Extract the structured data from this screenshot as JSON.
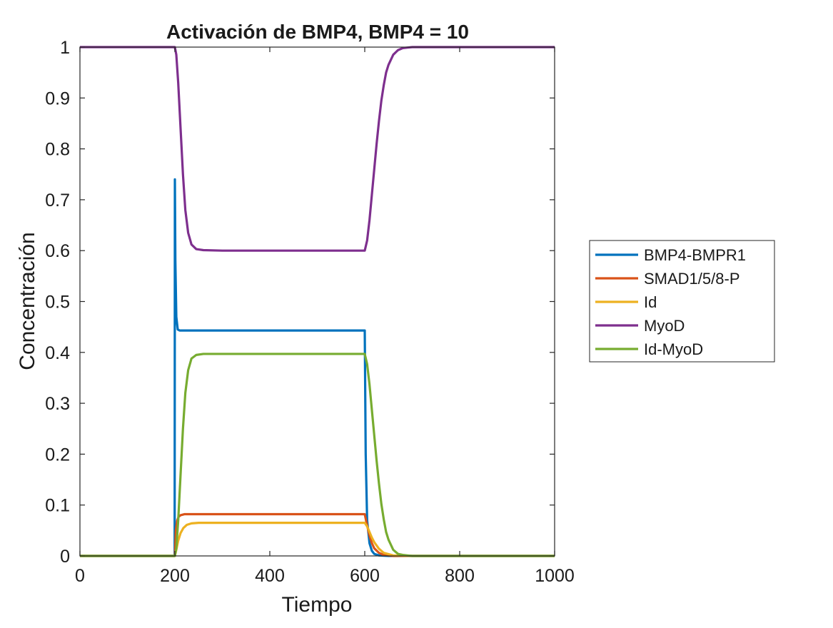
{
  "chart_data": {
    "type": "line",
    "title": "Activación de BMP4, BMP4 = 10",
    "xlabel": "Tiempo",
    "ylabel": "Concentración",
    "xlim": [
      0,
      1000
    ],
    "ylim": [
      0,
      1
    ],
    "xticks": [
      0,
      200,
      400,
      600,
      800,
      1000
    ],
    "xtick_labels": [
      "0",
      "200",
      "400",
      "600",
      "800",
      "1000"
    ],
    "yticks": [
      0,
      0.1,
      0.2,
      0.3,
      0.4,
      0.5,
      0.6,
      0.7,
      0.8,
      0.9,
      1
    ],
    "ytick_labels": [
      "0",
      "0.1",
      "0.2",
      "0.3",
      "0.4",
      "0.5",
      "0.6",
      "0.7",
      "0.8",
      "0.9",
      "1"
    ],
    "grid": false,
    "legend_placement": "outside-right",
    "series": [
      {
        "name": "BMP4-BMPR1",
        "color": "#0072BD",
        "x": [
          0,
          199.5,
          200,
          201,
          203,
          206,
          210,
          220,
          300,
          400,
          500,
          598,
          600,
          602,
          605,
          610,
          615,
          620,
          630,
          650,
          700,
          1000
        ],
        "y": [
          0,
          0,
          0.74,
          0.58,
          0.47,
          0.445,
          0.443,
          0.443,
          0.443,
          0.443,
          0.443,
          0.443,
          0.443,
          0.2,
          0.07,
          0.025,
          0.01,
          0.004,
          0.001,
          0,
          0,
          0
        ]
      },
      {
        "name": "SMAD1/5/8-P",
        "color": "#D95319",
        "x": [
          0,
          200,
          202,
          205,
          208,
          212,
          220,
          300,
          400,
          500,
          600,
          605,
          610,
          615,
          620,
          630,
          640,
          660,
          700,
          1000
        ],
        "y": [
          0,
          0,
          0.05,
          0.07,
          0.077,
          0.08,
          0.082,
          0.082,
          0.082,
          0.082,
          0.082,
          0.06,
          0.04,
          0.025,
          0.015,
          0.006,
          0.002,
          0,
          0,
          0
        ]
      },
      {
        "name": "Id",
        "color": "#EDB120",
        "x": [
          0,
          200,
          203,
          207,
          212,
          218,
          225,
          235,
          250,
          300,
          400,
          500,
          600,
          605,
          610,
          615,
          620,
          630,
          640,
          660,
          700,
          1000
        ],
        "y": [
          0,
          0,
          0.012,
          0.03,
          0.045,
          0.055,
          0.061,
          0.064,
          0.065,
          0.065,
          0.065,
          0.065,
          0.065,
          0.058,
          0.047,
          0.036,
          0.027,
          0.014,
          0.006,
          0.001,
          0,
          0
        ]
      },
      {
        "name": "MyoD",
        "color": "#7E2F8E",
        "x": [
          0,
          200,
          203,
          207,
          212,
          217,
          222,
          228,
          235,
          245,
          260,
          300,
          400,
          500,
          600,
          605,
          610,
          615,
          620,
          625,
          630,
          635,
          640,
          645,
          650,
          660,
          670,
          680,
          690,
          700,
          720,
          1000
        ],
        "y": [
          1,
          1,
          0.985,
          0.93,
          0.84,
          0.75,
          0.68,
          0.635,
          0.612,
          0.603,
          0.601,
          0.6,
          0.6,
          0.6,
          0.6,
          0.62,
          0.66,
          0.71,
          0.76,
          0.81,
          0.855,
          0.895,
          0.925,
          0.95,
          0.965,
          0.985,
          0.994,
          0.998,
          0.999,
          1,
          1,
          1
        ]
      },
      {
        "name": "Id-MyoD",
        "color": "#77AC30",
        "x": [
          0,
          200,
          203,
          207,
          212,
          217,
          222,
          228,
          235,
          245,
          260,
          300,
          400,
          500,
          600,
          605,
          610,
          615,
          620,
          625,
          630,
          635,
          640,
          645,
          650,
          660,
          670,
          680,
          690,
          700,
          720,
          1000
        ],
        "y": [
          0,
          0,
          0.015,
          0.07,
          0.16,
          0.25,
          0.32,
          0.365,
          0.388,
          0.395,
          0.397,
          0.397,
          0.397,
          0.397,
          0.397,
          0.377,
          0.337,
          0.287,
          0.237,
          0.187,
          0.142,
          0.102,
          0.072,
          0.047,
          0.032,
          0.012,
          0.004,
          0.002,
          0.001,
          0,
          0,
          0
        ]
      }
    ]
  }
}
